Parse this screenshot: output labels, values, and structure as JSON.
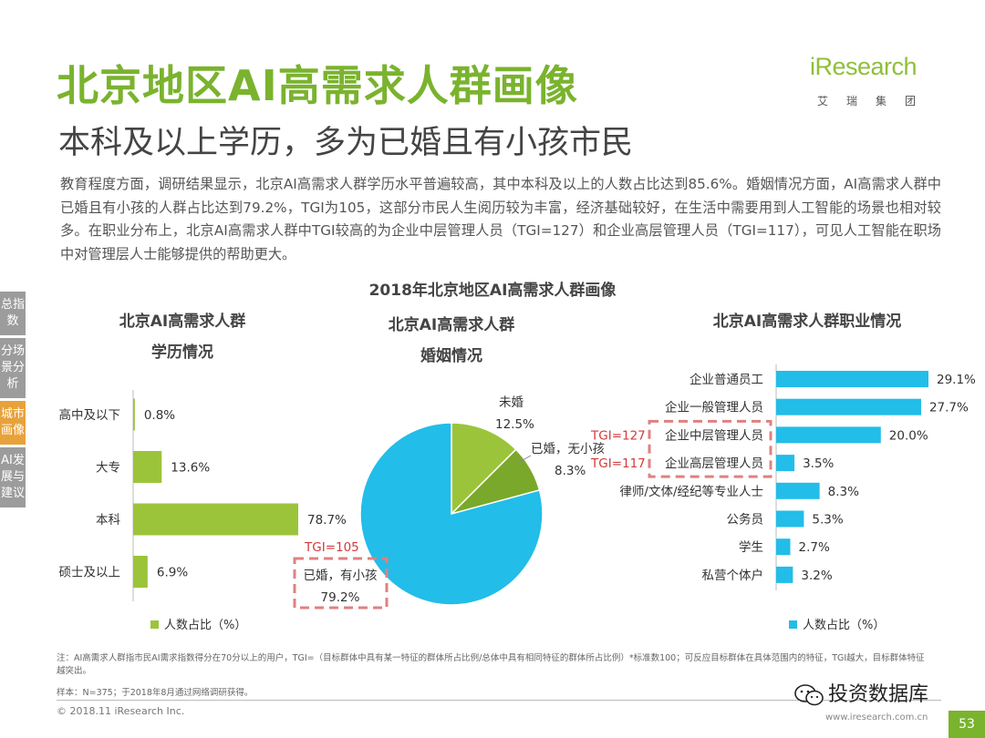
{
  "header": {
    "title": "北京地区AI高需求人群画像",
    "subtitle": "本科及以上学历，多为已婚且有小孩市民"
  },
  "logo": {
    "word": "iResearch",
    "cn": "艾瑞集团"
  },
  "intro": "教育程度方面，调研结果显示，北京AI高需求人群学历水平普遍较高，其中本科及以上的人数占比达到85.6%。婚姻情况方面，AI高需求人群中已婚且有小孩的人群占比达到79.2%，TGI为105，这部分市民人生阅历较为丰富，经济基础较好，在生活中需要用到人工智能的场景也相对较多。在职业分布上，北京AI高需求人群中TGI较高的为企业中层管理人员（TGI=127）和企业高层管理人员（TGI=117），可见人工智能在职场中对管理层人士能够提供的帮助更大。",
  "side_tabs": [
    {
      "label": "总指数",
      "active": false
    },
    {
      "label": "分场景分析",
      "active": false
    },
    {
      "label": "城市画像",
      "active": true
    },
    {
      "label": "AI发展与建议",
      "active": false
    }
  ],
  "main_chart_title": "2018年北京地区AI高需求人群画像",
  "chart_data": [
    {
      "type": "bar",
      "orientation": "horizontal",
      "title": "北京AI高需求人群学历情况",
      "title_lines": [
        "北京AI高需求人群",
        "学历情况"
      ],
      "categories": [
        "高中及以下",
        "大专",
        "本科",
        "硕士及以上"
      ],
      "values": [
        0.8,
        13.6,
        78.7,
        6.9
      ],
      "value_labels": [
        "0.8%",
        "13.6%",
        "78.7%",
        "6.9%"
      ],
      "legend": "人数占比（%）",
      "color": "#9cc43a",
      "xlim": [
        0,
        100
      ]
    },
    {
      "type": "pie",
      "title": "北京AI高需求人群婚姻情况",
      "title_lines": [
        "北京AI高需求人群",
        "婚姻情况"
      ],
      "slices": [
        {
          "label": "未婚",
          "value": 12.5,
          "value_label": "12.5%",
          "color": "#9cc43a"
        },
        {
          "label": "已婚，无小孩",
          "value": 8.3,
          "value_label": "8.3%",
          "color": "#7aa82a"
        },
        {
          "label": "已婚，有小孩",
          "value": 79.2,
          "value_label": "79.2%",
          "color": "#22bde8"
        }
      ],
      "annotation": "TGI=105"
    },
    {
      "type": "bar",
      "orientation": "horizontal",
      "title": "北京AI高需求人群职业情况",
      "categories": [
        "企业普通员工",
        "企业一般管理人员",
        "企业中层管理人员",
        "企业高层管理人员",
        "律师/文体/经纪等专业人士",
        "公务员",
        "学生",
        "私营个体户"
      ],
      "values": [
        29.1,
        27.7,
        20.0,
        3.5,
        8.3,
        5.3,
        2.7,
        3.2
      ],
      "value_labels": [
        "29.1%",
        "27.7%",
        "20.0%",
        "3.5%",
        "8.3%",
        "5.3%",
        "2.7%",
        "3.2%"
      ],
      "legend": "人数占比（%）",
      "color": "#22bde8",
      "xlim": [
        0,
        35
      ],
      "annotations": [
        {
          "category": "企业中层管理人员",
          "text": "TGI=127"
        },
        {
          "category": "企业高层管理人员",
          "text": "TGI=117"
        }
      ]
    }
  ],
  "footnote": "注：AI高需求人群指市民AI需求指数得分在70分以上的用户，TGI=（目标群体中具有某一特征的群体所占比例/总体中具有相同特征的群体所占比例）*标准数100；可反应目标群体在具体范围内的特征，TGI越大，目标群体特征越突出。",
  "sample": "样本：N=375；于2018年8月通过网络调研获得。",
  "copyright": "© 2018.11 iResearch Inc.",
  "watermark": "投资数据库",
  "website": "www.iresearch.com.cn",
  "page_number": "53",
  "colors": {
    "green": "#7ab32e",
    "blue": "#22bde8",
    "red_dash": "#e08080",
    "tgi_red": "#d23a3a"
  }
}
